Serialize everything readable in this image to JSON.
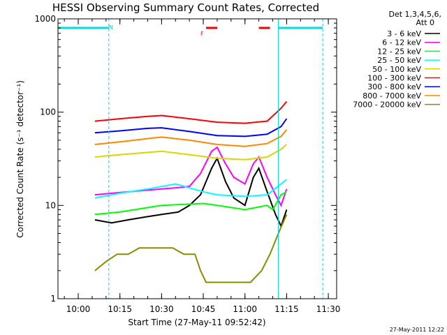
{
  "chart_data": {
    "type": "line",
    "title": "HESSI Observing Summary Count Rates, Corrected",
    "xlabel": "Start Time (27-May-11 09:52:42)",
    "ylabel": "Corrected Count Rate (s⁻¹ detector⁻¹)",
    "xlim": [
      "09:52:42",
      "11:33:00"
    ],
    "ylim": [
      1,
      1000
    ],
    "yscale": "log",
    "x_ticks": [
      "10:00",
      "10:15",
      "10:30",
      "10:45",
      "11:00",
      "11:15",
      "11:30"
    ],
    "y_ticks": [
      {
        "value": 1,
        "label": "1"
      },
      {
        "value": 10,
        "label": "10"
      },
      {
        "value": 100,
        "label": "100"
      },
      {
        "value": 1000,
        "label": "1000"
      }
    ],
    "legend": {
      "header_line1": "Det 1,3,4,5,6,",
      "header_line2": "Att 0",
      "placement": "outside-right"
    },
    "series": [
      {
        "name": "3 - 6 keV",
        "color": "#000000",
        "x": [
          "10:06",
          "10:12",
          "10:18",
          "10:24",
          "10:30",
          "10:36",
          "10:40",
          "10:44",
          "10:48",
          "10:50",
          "10:53",
          "10:56",
          "11:00",
          "11:03",
          "11:05",
          "11:08",
          "11:11",
          "11:13",
          "11:15"
        ],
        "values": [
          7,
          6.5,
          7,
          7.5,
          8,
          8.5,
          10,
          13,
          25,
          32,
          18,
          12,
          10,
          20,
          25,
          14,
          8,
          6,
          9
        ]
      },
      {
        "name": "6 - 12 keV",
        "color": "#ff00ff",
        "x": [
          "10:06",
          "10:12",
          "10:18",
          "10:24",
          "10:30",
          "10:36",
          "10:40",
          "10:44",
          "10:48",
          "10:50",
          "10:53",
          "10:56",
          "11:00",
          "11:03",
          "11:05",
          "11:08",
          "11:11",
          "11:13",
          "11:15"
        ],
        "values": [
          13,
          13.5,
          14,
          14.5,
          15,
          15.5,
          16,
          22,
          38,
          42,
          28,
          20,
          17,
          28,
          33,
          20,
          13,
          10,
          15
        ]
      },
      {
        "name": "12 - 25 keV",
        "color": "#00ff00",
        "x": [
          "10:06",
          "10:15",
          "10:30",
          "10:45",
          "10:50",
          "11:00",
          "11:08",
          "11:10",
          "11:13",
          "11:15"
        ],
        "values": [
          8,
          8.5,
          10,
          10.5,
          10,
          9,
          10,
          9,
          13,
          14
        ]
      },
      {
        "name": "25 - 50 keV",
        "color": "#00ffff",
        "x": [
          "10:06",
          "10:15",
          "10:25",
          "10:35",
          "10:45",
          "10:50",
          "11:00",
          "11:08",
          "11:13",
          "11:15"
        ],
        "values": [
          12,
          13.5,
          15,
          17,
          14,
          13,
          12.5,
          13,
          17,
          19
        ]
      },
      {
        "name": "50 - 100 keV",
        "color": "#d8d800",
        "x": [
          "10:06",
          "10:15",
          "10:25",
          "10:30",
          "10:40",
          "10:50",
          "11:00",
          "11:08",
          "11:13",
          "11:15"
        ],
        "values": [
          33,
          35,
          37,
          38,
          35,
          32,
          31,
          33,
          40,
          45
        ]
      },
      {
        "name": "100 - 300 keV",
        "color": "#ff0000",
        "x": [
          "10:06",
          "10:15",
          "10:25",
          "10:30",
          "10:40",
          "10:50",
          "11:00",
          "11:08",
          "11:13",
          "11:15"
        ],
        "values": [
          80,
          85,
          90,
          92,
          85,
          78,
          76,
          80,
          110,
          130
        ]
      },
      {
        "name": "300 - 800 keV",
        "color": "#0000ff",
        "x": [
          "10:06",
          "10:15",
          "10:25",
          "10:30",
          "10:40",
          "10:50",
          "11:00",
          "11:08",
          "11:13",
          "11:15"
        ],
        "values": [
          60,
          63,
          67,
          68,
          62,
          56,
          55,
          58,
          70,
          85
        ]
      },
      {
        "name": "800 - 7000 keV",
        "color": "#ff8800",
        "x": [
          "10:06",
          "10:15",
          "10:25",
          "10:30",
          "10:40",
          "10:50",
          "11:00",
          "11:08",
          "11:13",
          "11:15"
        ],
        "values": [
          45,
          48,
          52,
          54,
          50,
          45,
          43,
          46,
          55,
          65
        ]
      },
      {
        "name": "7000 - 20000 keV",
        "color": "#8b8b00",
        "x": [
          "10:06",
          "10:10",
          "10:14",
          "10:18",
          "10:22",
          "10:26",
          "10:30",
          "10:34",
          "10:38",
          "10:42",
          "10:44",
          "10:46",
          "10:50",
          "10:54",
          "10:58",
          "11:02",
          "11:06",
          "11:09",
          "11:12",
          "11:15"
        ],
        "values": [
          2,
          2.5,
          3,
          3,
          3.5,
          3.5,
          3.5,
          3.5,
          3,
          3,
          2,
          1.5,
          1.5,
          1.5,
          1.5,
          1.5,
          2,
          3,
          5,
          8
        ]
      }
    ],
    "annotations": {
      "night_bars": [
        {
          "start": "09:52:42",
          "end": "10:11:00"
        },
        {
          "start": "11:12:00",
          "end": "11:28:00"
        }
      ],
      "night_bar_value": 800,
      "n_marker": {
        "label": "N",
        "at": "10:11:00"
      },
      "flare_bars": [
        {
          "start": "10:46:00",
          "end": "10:50:00"
        },
        {
          "start": "11:05:00",
          "end": "11:09:00"
        }
      ],
      "flare_bar_value": 800,
      "f_marker": {
        "label": "F",
        "at": "10:45:00"
      },
      "saa_dashed_lines": [
        "10:11:00",
        "11:28:00"
      ],
      "solid_vertical_line": "11:12:00"
    },
    "footer_date": "27-May-2011 12:22"
  }
}
